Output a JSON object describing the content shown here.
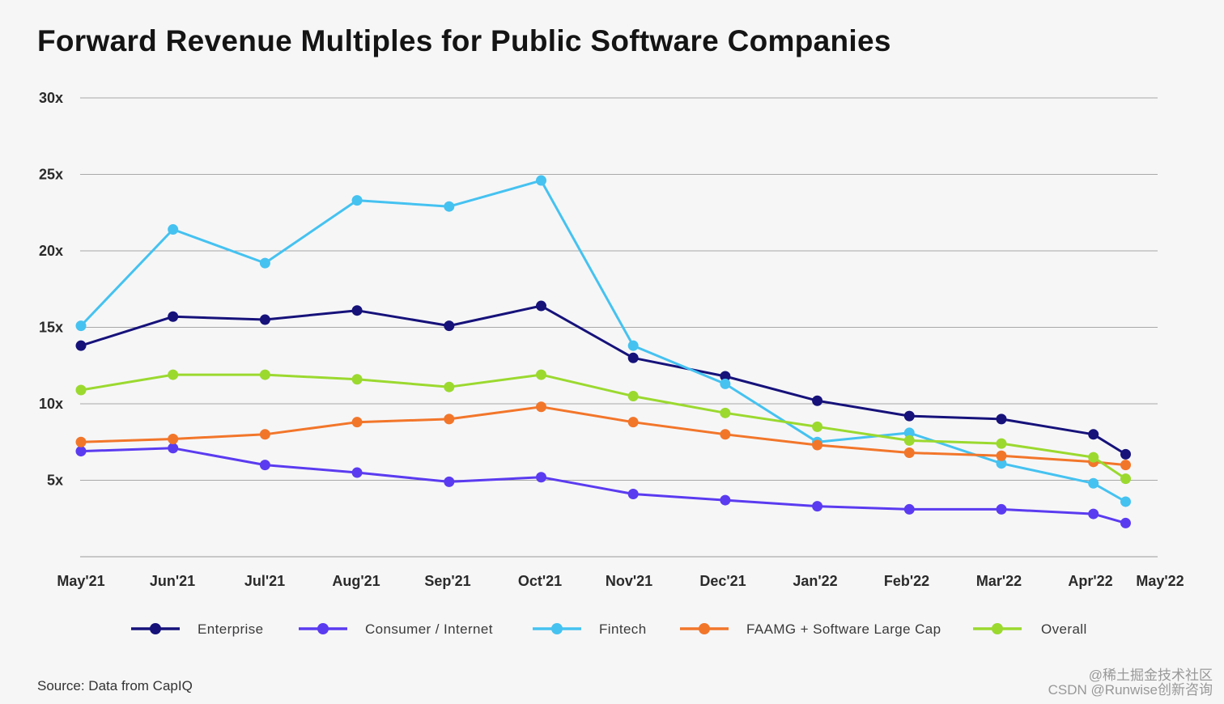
{
  "title": "Forward Revenue Multiples for Public Software Companies",
  "source": "Source: Data from CapIQ",
  "watermark": {
    "line1": "@稀土掘金技术社区",
    "line2": "CSDN @Runwise创新咨询"
  },
  "chart_data": {
    "type": "line",
    "title": "Forward Revenue Multiples for Public Software Companies",
    "xlabel": "",
    "ylabel": "",
    "categories": [
      "May'21",
      "Jun'21",
      "Jul'21",
      "Aug'21",
      "Sep'21",
      "Oct'21",
      "Nov'21",
      "Dec'21",
      "Jan'22",
      "Feb'22",
      "Mar'22",
      "Apr'22",
      "May'22"
    ],
    "x": [
      0,
      1,
      2,
      3,
      4,
      5,
      6,
      7,
      8,
      9,
      10,
      11,
      11.35
    ],
    "yticks": [
      5,
      10,
      15,
      20,
      25,
      30
    ],
    "ytick_labels": [
      "5x",
      "10x",
      "15x",
      "20x",
      "25x",
      "30x"
    ],
    "ylim": [
      0,
      30
    ],
    "grid": true,
    "legend_position": "bottom",
    "series": [
      {
        "name": "Enterprise",
        "color": "#16127a",
        "values": [
          13.8,
          15.7,
          15.5,
          16.1,
          15.1,
          16.4,
          13.0,
          11.8,
          10.2,
          9.2,
          9.0,
          8.0,
          6.7
        ]
      },
      {
        "name": "Consumer / Internet",
        "color": "#5b3bf0",
        "values": [
          6.9,
          7.1,
          6.0,
          5.5,
          4.9,
          5.2,
          4.1,
          3.7,
          3.3,
          3.1,
          3.1,
          2.8,
          2.2
        ]
      },
      {
        "name": "Fintech",
        "color": "#45c2f0",
        "values": [
          15.1,
          21.4,
          19.2,
          23.3,
          22.9,
          24.6,
          13.8,
          11.3,
          7.5,
          8.1,
          6.1,
          4.8,
          3.6
        ]
      },
      {
        "name": "FAAMG + Software Large Cap",
        "color": "#f2762a",
        "values": [
          7.5,
          7.7,
          8.0,
          8.8,
          9.0,
          9.8,
          8.8,
          8.0,
          7.3,
          6.8,
          6.6,
          6.2,
          6.0
        ]
      },
      {
        "name": "Overall",
        "color": "#9bd92f",
        "values": [
          10.9,
          11.9,
          11.9,
          11.6,
          11.1,
          11.9,
          10.5,
          9.4,
          8.5,
          7.6,
          7.4,
          6.5,
          5.1
        ]
      }
    ]
  }
}
